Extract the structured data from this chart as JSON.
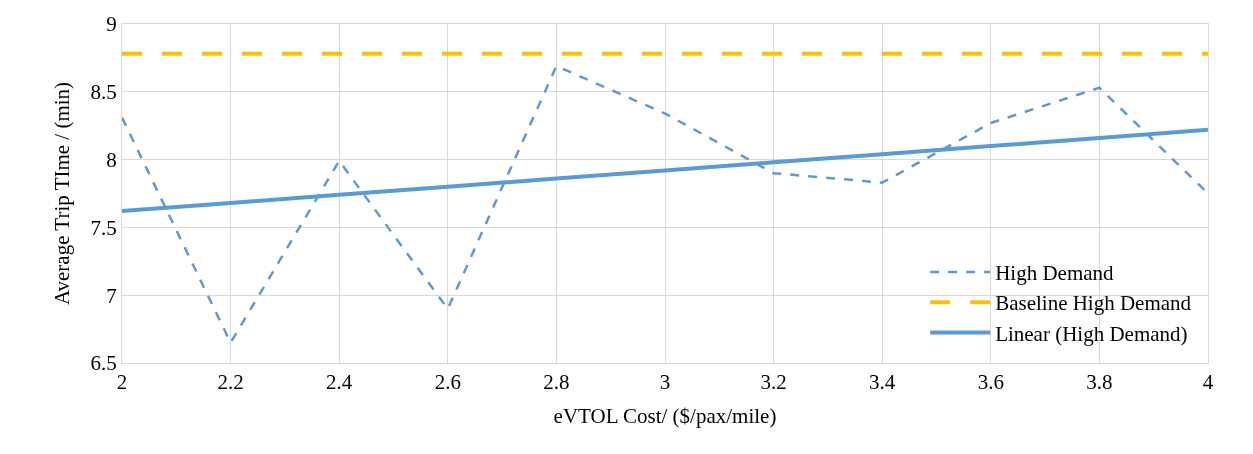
{
  "chart_data": {
    "type": "line",
    "xlabel": "eVTOL Cost/ ($/pax/mile)",
    "ylabel": "Average Trip TIme / (min)",
    "x": [
      2,
      2.2,
      2.4,
      2.6,
      2.8,
      3,
      3.2,
      3.4,
      3.6,
      3.8,
      4
    ],
    "series": [
      {
        "name": "High Demand",
        "color": "#5b9bd5",
        "line_style": "dashed",
        "values": [
          8.31,
          6.65,
          7.99,
          6.9,
          8.69,
          8.34,
          7.9,
          7.83,
          8.27,
          8.53,
          7.75
        ]
      },
      {
        "name": "Baseline High Demand",
        "color": "#ffc000",
        "line_style": "dashed",
        "values": [
          8.78,
          8.78,
          8.78,
          8.78,
          8.78,
          8.78,
          8.78,
          8.78,
          8.78,
          8.78,
          8.78
        ]
      },
      {
        "name": "Linear (High Demand)",
        "color": "#5b9bd5",
        "line_style": "solid",
        "values": [
          7.62,
          7.68,
          7.74,
          7.8,
          7.86,
          7.92,
          7.98,
          8.04,
          8.1,
          8.16,
          8.22
        ]
      }
    ],
    "xlim": [
      2,
      4
    ],
    "xticks": [
      2,
      2.2,
      2.4,
      2.6,
      2.8,
      3,
      3.2,
      3.4,
      3.6,
      3.8,
      4
    ],
    "ylim": [
      6.5,
      9
    ],
    "yticks": [
      6.5,
      7,
      7.5,
      8,
      8.5,
      9
    ],
    "grid": true,
    "legend": "bottom right",
    "marker": "none"
  }
}
